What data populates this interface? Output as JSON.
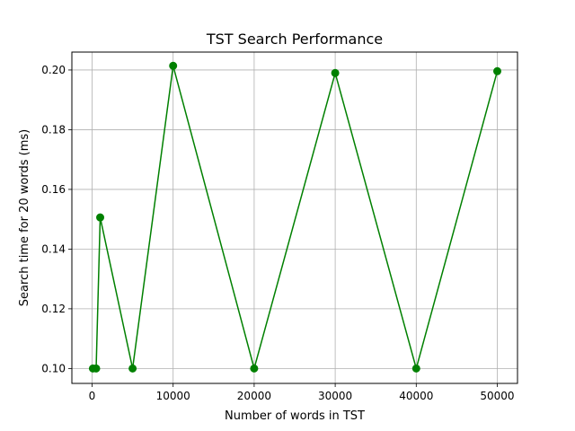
{
  "chart_data": {
    "type": "line",
    "title": "TST Search Performance",
    "xlabel": "Number of words in TST",
    "ylabel": "Search time for 20 words (ms)",
    "xlim": [
      -2495,
      52495
    ],
    "ylim": [
      0.095,
      0.206
    ],
    "xticks": [
      0,
      10000,
      20000,
      30000,
      40000,
      50000
    ],
    "xtick_labels": [
      "0",
      "10000",
      "20000",
      "30000",
      "40000",
      "50000"
    ],
    "yticks": [
      0.1,
      0.12,
      0.14,
      0.16,
      0.18,
      0.2
    ],
    "ytick_labels": [
      "0.10",
      "0.12",
      "0.14",
      "0.16",
      "0.18",
      "0.20"
    ],
    "grid": true,
    "series": [
      {
        "color": "#008000",
        "marker": "circle",
        "x": [
          100,
          500,
          1000,
          5000,
          10000,
          20000,
          30000,
          40000,
          50000
        ],
        "y": [
          0.1,
          0.1,
          0.1506,
          0.1,
          0.2014,
          0.1,
          0.199,
          0.1,
          0.1996
        ]
      }
    ]
  }
}
